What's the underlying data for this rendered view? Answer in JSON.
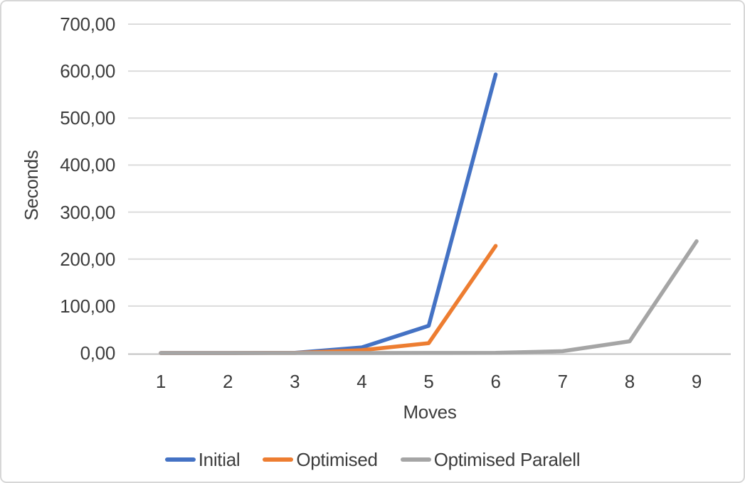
{
  "chart_data": {
    "type": "line",
    "title": "",
    "xlabel": "Moves",
    "ylabel": "Seconds",
    "x": [
      1,
      2,
      3,
      4,
      5,
      6,
      7,
      8,
      9
    ],
    "series": [
      {
        "name": "Initial",
        "color": "#4472C4",
        "values": [
          0.02,
          0.05,
          0.5,
          12,
          58,
          593
        ]
      },
      {
        "name": "Optimised",
        "color": "#ED7D31",
        "values": [
          0.01,
          0.02,
          0.2,
          6,
          21,
          228
        ]
      },
      {
        "name": "Optimised Paralell",
        "color": "#A5A5A5",
        "values": [
          0.01,
          0.01,
          0.02,
          0.05,
          0.2,
          0.5,
          4,
          25,
          238
        ]
      }
    ],
    "ylim": [
      0,
      700
    ],
    "yticks": [
      0,
      100,
      200,
      300,
      400,
      500,
      600,
      700
    ],
    "ytick_labels": [
      "0,00",
      "100,00",
      "200,00",
      "300,00",
      "400,00",
      "500,00",
      "600,00",
      "700,00"
    ],
    "xtick_labels": [
      "1",
      "2",
      "3",
      "4",
      "5",
      "6",
      "7",
      "8",
      "9"
    ],
    "grid": "horizontal",
    "legend_position": "bottom",
    "colors": {
      "gridline": "#dcdcdc",
      "axis_line": "#c2c2c2",
      "text": "#3d3d3d",
      "background": "#ffffff",
      "border": "#d7d7d7"
    }
  }
}
